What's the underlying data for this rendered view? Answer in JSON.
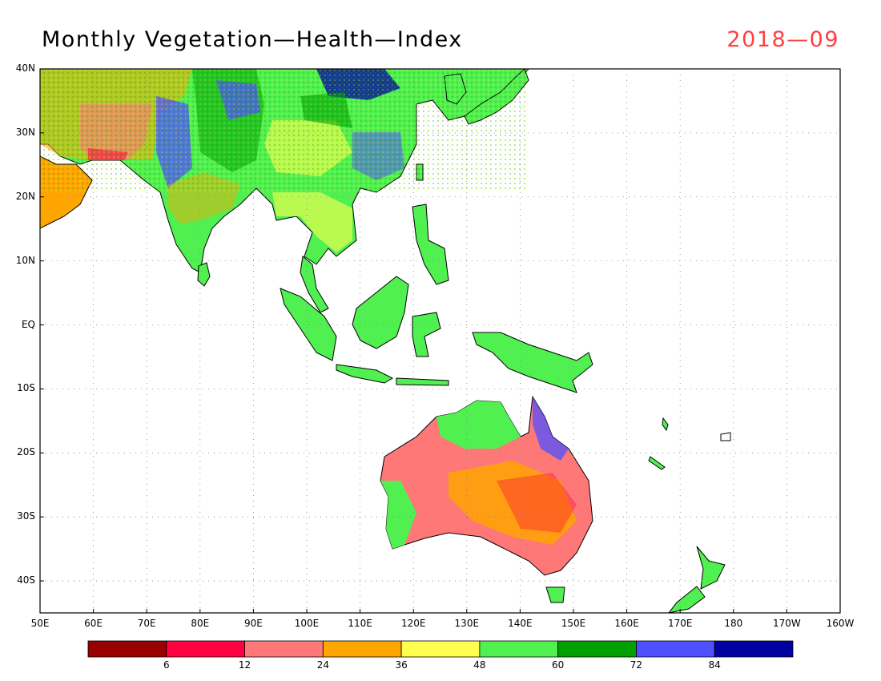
{
  "title": "Monthly Vegetation—Health—Index",
  "date": "2018—09",
  "map": {
    "lon_range": [
      50,
      200
    ],
    "lat_range": [
      -45,
      40
    ],
    "lon_ticks": [
      "50E",
      "60E",
      "70E",
      "80E",
      "90E",
      "100E",
      "110E",
      "120E",
      "130E",
      "140E",
      "150E",
      "160E",
      "170E",
      "180",
      "170W",
      "160W"
    ],
    "lat_ticks": [
      "40N",
      "30N",
      "20N",
      "10N",
      "EQ",
      "10S",
      "20S",
      "30S",
      "40S"
    ],
    "grid": "dotted"
  },
  "colorbar": {
    "colors": [
      "#990000",
      "#ff0040",
      "#ff7878",
      "#ffa500",
      "#ffff50",
      "#50f050",
      "#00a000",
      "#5050ff",
      "#0000a0"
    ],
    "labels": [
      "6",
      "12",
      "24",
      "36",
      "48",
      "60",
      "72",
      "84"
    ]
  }
}
